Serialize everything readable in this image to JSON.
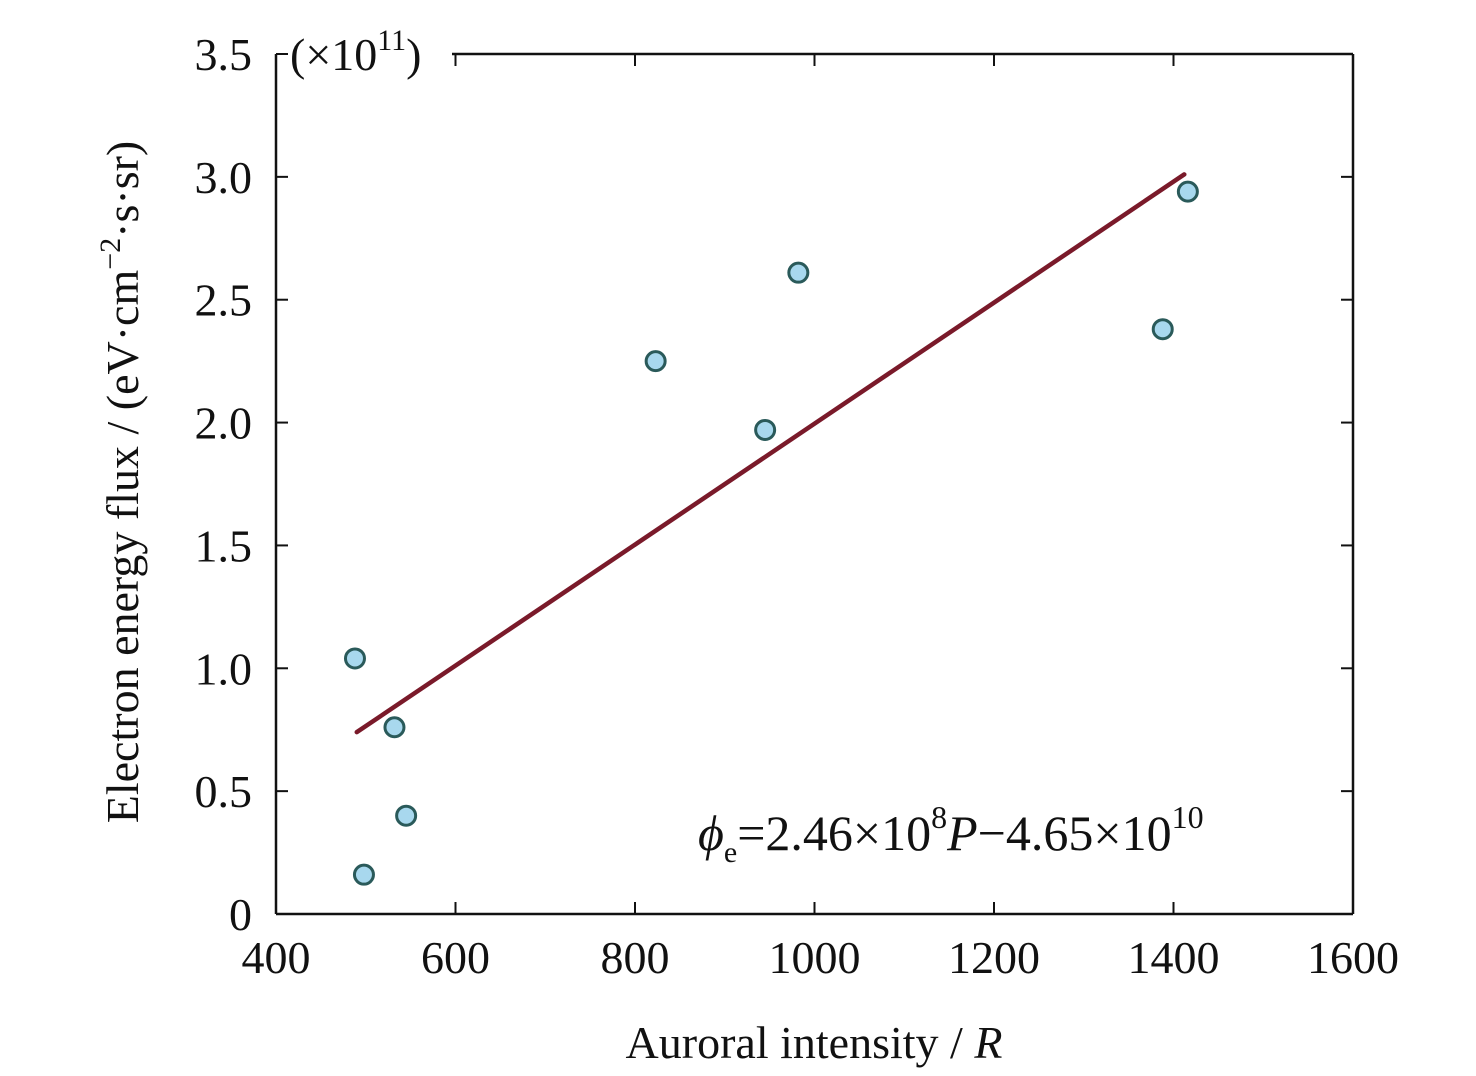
{
  "chart_data": {
    "type": "scatter",
    "xlabel": "Auroral intensity / ",
    "xlabel_var": "R",
    "ylabel": "Electron energy flux / (eV·cm",
    "ylabel_sup": "−2",
    "ylabel_tail": "·s·sr)",
    "y_multiplier": {
      "base": "(×10",
      "exp": "11",
      "close": ")"
    },
    "xlim": [
      400,
      1600
    ],
    "ylim": [
      0,
      3.5
    ],
    "x_ticks": [
      400,
      600,
      800,
      1000,
      1200,
      1400,
      1600
    ],
    "x_tick_labels": [
      "400",
      "600",
      "800",
      "1000",
      "1200",
      "1400",
      "1600"
    ],
    "y_ticks": [
      0,
      0.5,
      1.0,
      1.5,
      2.0,
      2.5,
      3.0,
      3.5
    ],
    "y_tick_labels": [
      "0",
      "0.5",
      "1.0",
      "1.5",
      "2.0",
      "2.5",
      "3.0",
      "3.5"
    ],
    "grid": false,
    "points": [
      {
        "x": 488,
        "y": 1.04
      },
      {
        "x": 498,
        "y": 0.16
      },
      {
        "x": 532,
        "y": 0.76
      },
      {
        "x": 545,
        "y": 0.4
      },
      {
        "x": 823,
        "y": 2.25
      },
      {
        "x": 945,
        "y": 1.97
      },
      {
        "x": 982,
        "y": 2.61
      },
      {
        "x": 1388,
        "y": 2.38
      },
      {
        "x": 1416,
        "y": 2.94
      }
    ],
    "fit_line": {
      "x": [
        490,
        1412
      ],
      "y": [
        0.74,
        3.01
      ]
    },
    "equation": {
      "phi": "ϕ",
      "phi_sub": "e",
      "mid": "=2.46×10",
      "exp1": "8",
      "var": "P",
      "rest": "−4.65×10",
      "exp2": "10"
    },
    "colors": {
      "marker_stroke": "#2a5a5a",
      "marker_fill": "#a8d8ee",
      "fit_line": "#7a1a2a"
    }
  }
}
